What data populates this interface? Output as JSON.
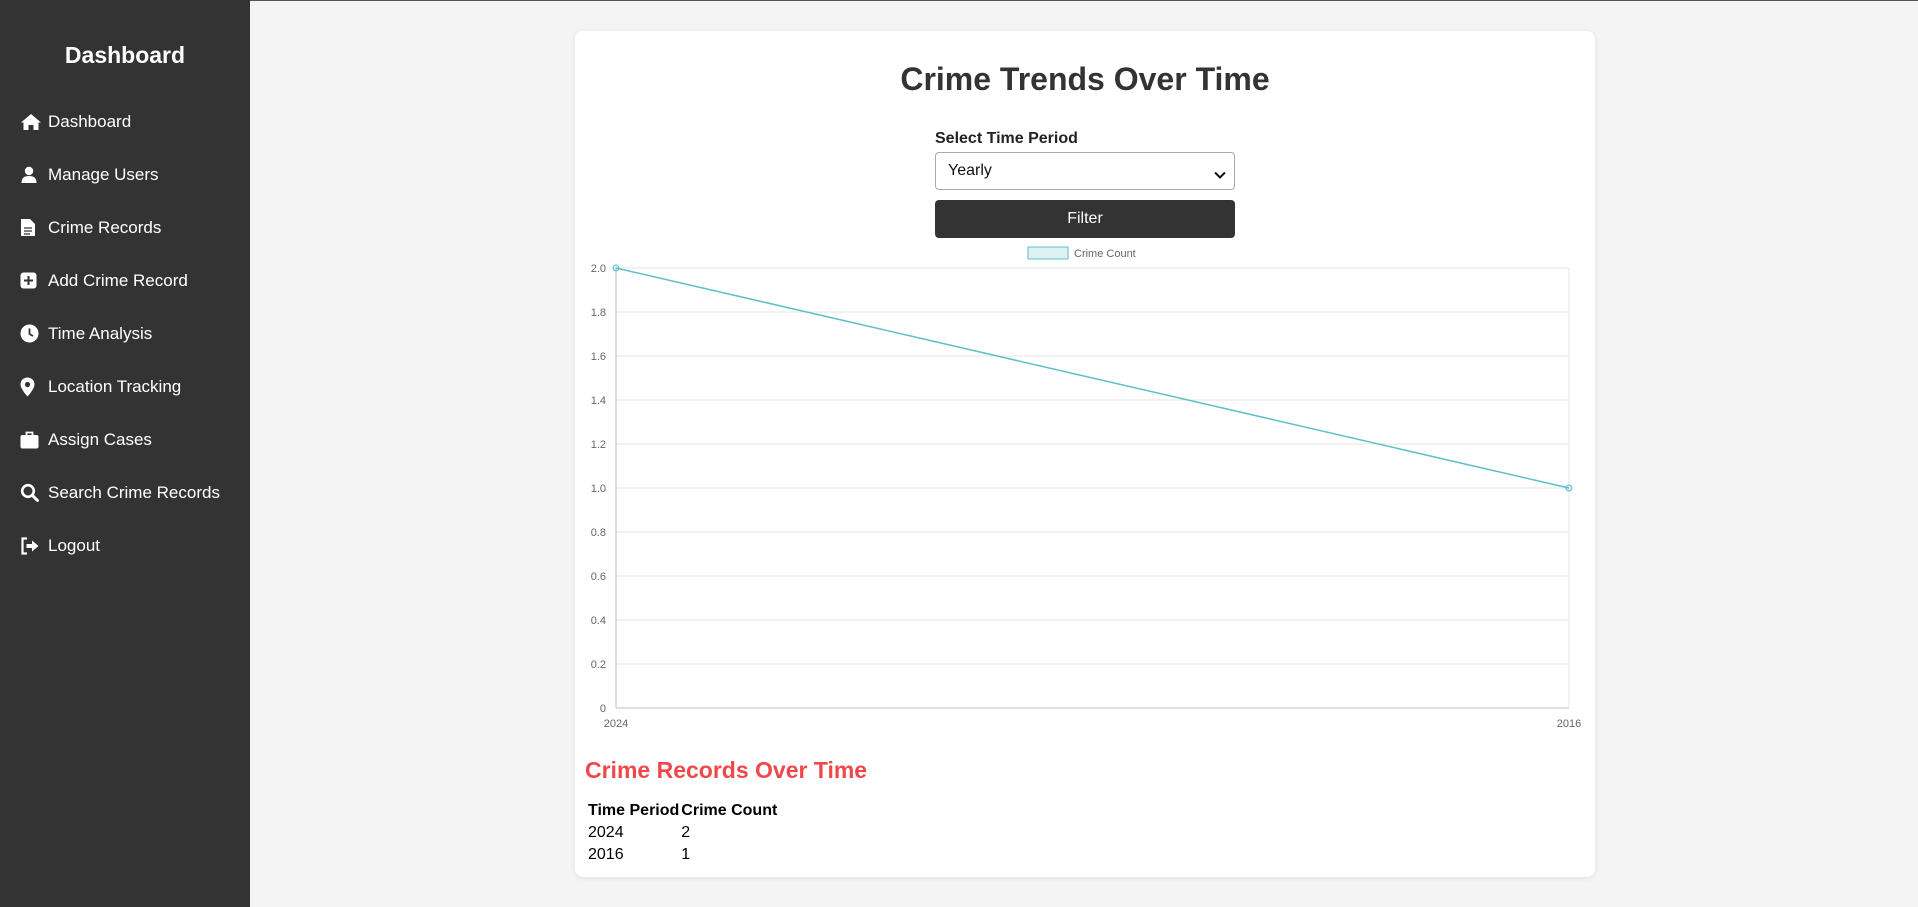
{
  "sidebar": {
    "title": "Dashboard",
    "items": [
      {
        "label": "Dashboard",
        "icon": "home-icon"
      },
      {
        "label": "Manage Users",
        "icon": "user-icon"
      },
      {
        "label": "Crime Records",
        "icon": "file-icon"
      },
      {
        "label": "Add Crime Record",
        "icon": "plus-square-icon"
      },
      {
        "label": "Time Analysis",
        "icon": "clock-icon"
      },
      {
        "label": "Location Tracking",
        "icon": "map-pin-icon"
      },
      {
        "label": "Assign Cases",
        "icon": "briefcase-icon"
      },
      {
        "label": "Search Crime Records",
        "icon": "search-icon"
      },
      {
        "label": "Logout",
        "icon": "logout-icon"
      }
    ]
  },
  "main": {
    "title": "Crime Trends Over Time",
    "filter": {
      "label": "Select Time Period",
      "selected": "Yearly",
      "button_label": "Filter"
    },
    "records": {
      "title": "Crime Records Over Time",
      "columns": [
        "Time Period",
        "Crime Count"
      ],
      "rows": [
        [
          "2024",
          "2"
        ],
        [
          "2016",
          "1"
        ]
      ]
    }
  },
  "colors": {
    "sidebar_bg": "#333333",
    "line": "#5bc0c8",
    "records_title": "#f0484a"
  },
  "chart_data": {
    "type": "line",
    "categories": [
      "2024",
      "2016"
    ],
    "series": [
      {
        "name": "Crime Count",
        "values": [
          2,
          1
        ]
      }
    ],
    "ylim": [
      0,
      2
    ],
    "yticks": [
      "0",
      "0.2",
      "0.4",
      "0.6",
      "0.8",
      "1.0",
      "1.2",
      "1.4",
      "1.6",
      "1.8",
      "2.0"
    ],
    "legend": "top",
    "grid": true
  }
}
